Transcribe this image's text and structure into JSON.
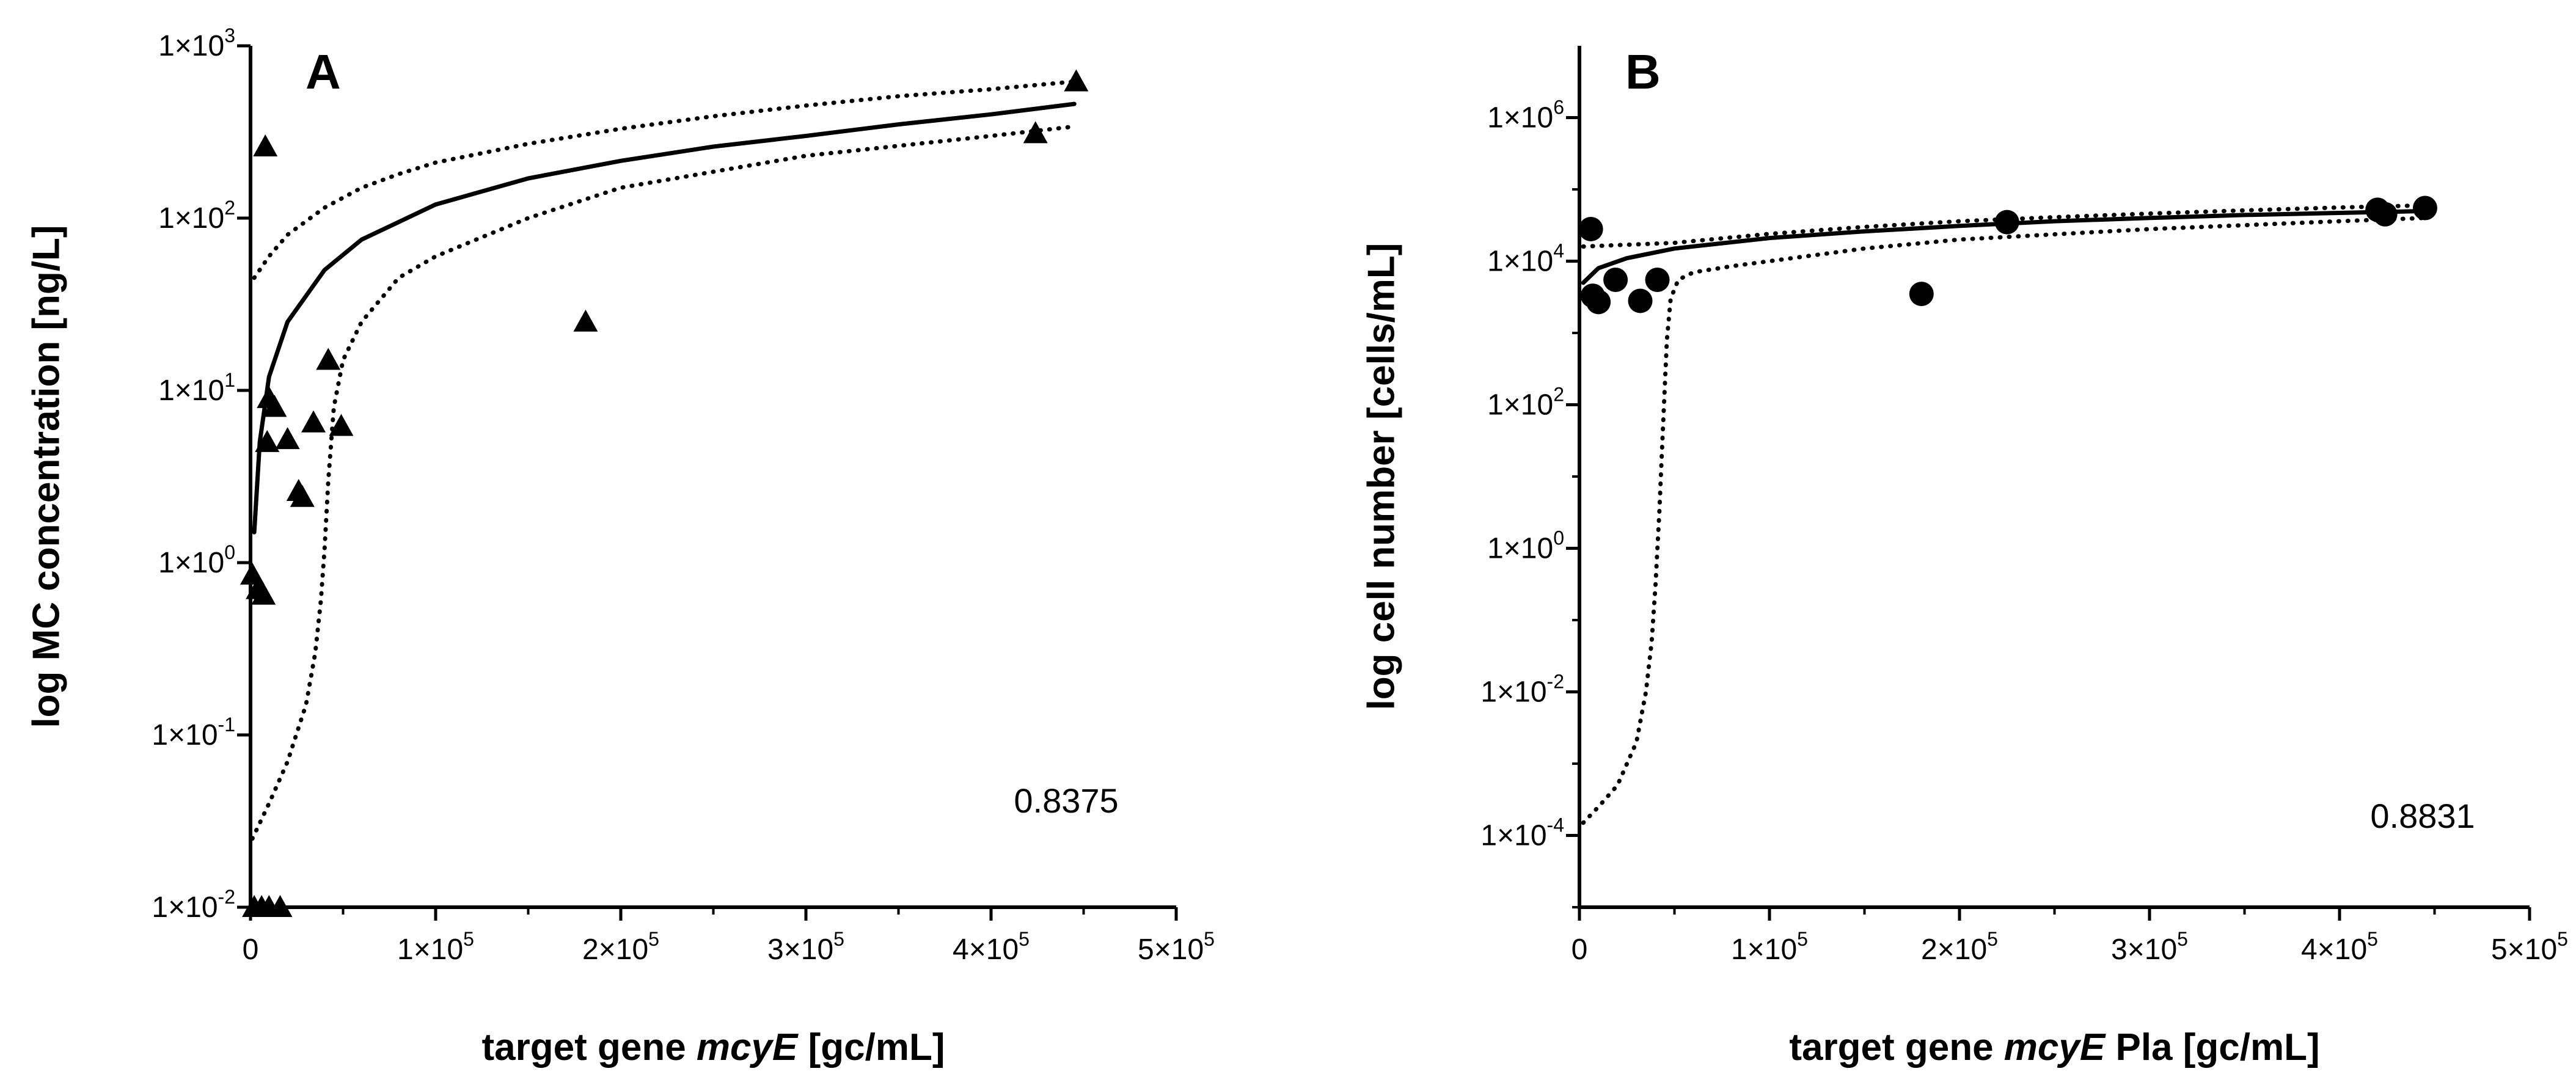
{
  "chart_data": [
    {
      "type": "scatter",
      "panel_label": "A",
      "xlabel": {
        "prefix": "target gene ",
        "italic": "mcyE",
        "suffix": " [gc/mL]"
      },
      "ylabel": "log MC concentration [ng/L]",
      "x_scale": "linear",
      "y_scale": "log",
      "xlim": [
        0,
        500000
      ],
      "ylim": [
        0.01,
        1000
      ],
      "x_ticks": [
        {
          "value": 0,
          "mantissa": "0",
          "exp": ""
        },
        {
          "value": 100000,
          "mantissa": "1×10",
          "exp": "5"
        },
        {
          "value": 200000,
          "mantissa": "2×10",
          "exp": "5"
        },
        {
          "value": 300000,
          "mantissa": "3×10",
          "exp": "5"
        },
        {
          "value": 400000,
          "mantissa": "4×10",
          "exp": "5"
        },
        {
          "value": 500000,
          "mantissa": "5×10",
          "exp": "5"
        }
      ],
      "y_ticks": [
        {
          "value": 0.01,
          "mantissa": "1×10",
          "exp": "-2"
        },
        {
          "value": 0.1,
          "mantissa": "1×10",
          "exp": "-1"
        },
        {
          "value": 1,
          "mantissa": "1×10",
          "exp": "0"
        },
        {
          "value": 10,
          "mantissa": "1×10",
          "exp": "1"
        },
        {
          "value": 100,
          "mantissa": "1×10",
          "exp": "2"
        },
        {
          "value": 1000,
          "mantissa": "1×10",
          "exp": "3"
        }
      ],
      "marker": "triangle",
      "annotation": "0.8375",
      "points": [
        {
          "x": 1000,
          "y": 0.85
        },
        {
          "x": 4000,
          "y": 0.7
        },
        {
          "x": 7000,
          "y": 0.65
        },
        {
          "x": 2000,
          "y": 0.01
        },
        {
          "x": 6000,
          "y": 0.01
        },
        {
          "x": 10000,
          "y": 0.01
        },
        {
          "x": 16000,
          "y": 0.01
        },
        {
          "x": 8000,
          "y": 260
        },
        {
          "x": 9000,
          "y": 5
        },
        {
          "x": 10000,
          "y": 9
        },
        {
          "x": 13000,
          "y": 8
        },
        {
          "x": 20000,
          "y": 5.2
        },
        {
          "x": 26000,
          "y": 2.6
        },
        {
          "x": 28000,
          "y": 2.4
        },
        {
          "x": 34000,
          "y": 6.5
        },
        {
          "x": 42000,
          "y": 15
        },
        {
          "x": 49000,
          "y": 6.2
        },
        {
          "x": 181000,
          "y": 25
        },
        {
          "x": 424000,
          "y": 310
        },
        {
          "x": 446000,
          "y": 620
        }
      ],
      "fit": {
        "x": [
          2000,
          5000,
          10000,
          20000,
          40000,
          60000,
          100000,
          150000,
          200000,
          250000,
          300000,
          350000,
          400000,
          445000
        ],
        "y": [
          1.5,
          5,
          12,
          25,
          50,
          75,
          120,
          170,
          215,
          260,
          300,
          350,
          400,
          460
        ]
      },
      "ci_upper": {
        "x": [
          2000,
          10000,
          20000,
          40000,
          60000,
          80000,
          100000,
          150000,
          200000,
          250000,
          300000,
          350000,
          400000,
          445000
        ],
        "y": [
          45,
          60,
          80,
          115,
          150,
          180,
          210,
          270,
          330,
          390,
          450,
          510,
          560,
          620
        ]
      },
      "ci_lower": {
        "x": [
          1000,
          10000,
          20000,
          30000,
          35000,
          38000,
          40000,
          42000,
          45000,
          50000,
          60000,
          80000,
          100000,
          150000,
          200000,
          300000,
          400000,
          445000
        ],
        "y": [
          0.025,
          0.04,
          0.07,
          0.15,
          0.3,
          0.6,
          1.2,
          3,
          8,
          15,
          25,
          45,
          60,
          100,
          150,
          230,
          300,
          340
        ]
      }
    },
    {
      "type": "scatter",
      "panel_label": "B",
      "xlabel": {
        "prefix": "target gene ",
        "italic": "mcyE",
        "suffix": " Pla [gc/mL]"
      },
      "ylabel": "log cell number [cells/mL]",
      "x_scale": "linear",
      "y_scale": "log",
      "xlim": [
        0,
        500000
      ],
      "ylim": [
        1e-05,
        10000000
      ],
      "x_ticks": [
        {
          "value": 0,
          "mantissa": "0",
          "exp": ""
        },
        {
          "value": 100000,
          "mantissa": "1×10",
          "exp": "5"
        },
        {
          "value": 200000,
          "mantissa": "2×10",
          "exp": "5"
        },
        {
          "value": 300000,
          "mantissa": "3×10",
          "exp": "5"
        },
        {
          "value": 400000,
          "mantissa": "4×10",
          "exp": "5"
        },
        {
          "value": 500000,
          "mantissa": "5×10",
          "exp": "5"
        }
      ],
      "y_ticks": [
        {
          "value": 0.0001,
          "mantissa": "1×10",
          "exp": "-4"
        },
        {
          "value": 0.01,
          "mantissa": "1×10",
          "exp": "-2"
        },
        {
          "value": 1,
          "mantissa": "1×10",
          "exp": "0"
        },
        {
          "value": 100,
          "mantissa": "1×10",
          "exp": "2"
        },
        {
          "value": 10000,
          "mantissa": "1×10",
          "exp": "4"
        },
        {
          "value": 1000000,
          "mantissa": "1×10",
          "exp": "6"
        }
      ],
      "marker": "circle",
      "annotation": "0.8831",
      "points": [
        {
          "x": 6000,
          "y": 28000
        },
        {
          "x": 7000,
          "y": 3300
        },
        {
          "x": 10000,
          "y": 2700
        },
        {
          "x": 19000,
          "y": 5500
        },
        {
          "x": 32000,
          "y": 2800
        },
        {
          "x": 41000,
          "y": 5500
        },
        {
          "x": 180000,
          "y": 3500
        },
        {
          "x": 225000,
          "y": 35000
        },
        {
          "x": 420000,
          "y": 52000
        },
        {
          "x": 424000,
          "y": 45000
        },
        {
          "x": 445000,
          "y": 55000
        }
      ],
      "fit": {
        "x": [
          2000,
          10000,
          25000,
          50000,
          100000,
          150000,
          200000,
          250000,
          300000,
          350000,
          400000,
          445000
        ],
        "y": [
          5000,
          8000,
          11000,
          15000,
          21000,
          26000,
          31000,
          36000,
          40000,
          44000,
          47000,
          50000
        ]
      },
      "ci_upper": {
        "x": [
          2000,
          50000,
          100000,
          150000,
          200000,
          250000,
          300000,
          350000,
          400000,
          445000
        ],
        "y": [
          16000,
          18000,
          24000,
          30000,
          36000,
          41000,
          46000,
          51000,
          56000,
          60000
        ]
      },
      "ci_lower": {
        "x": [
          2000,
          10000,
          20000,
          30000,
          35000,
          38000,
          40000,
          42000,
          44000,
          46000,
          48000,
          52000,
          60000,
          80000,
          100000,
          150000,
          200000,
          300000,
          400000,
          445000
        ],
        "y": [
          0.00015,
          0.00025,
          0.0005,
          0.002,
          0.01,
          0.05,
          0.3,
          3,
          50,
          800,
          3000,
          5500,
          7000,
          8500,
          10000,
          15000,
          20000,
          28000,
          36000,
          40000
        ]
      }
    }
  ]
}
